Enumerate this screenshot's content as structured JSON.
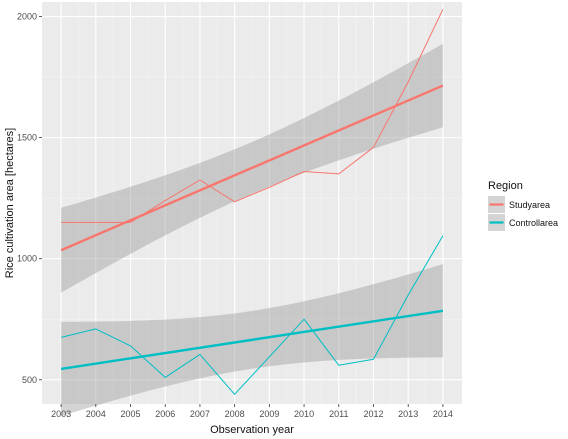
{
  "chart_data": {
    "type": "line",
    "title": "",
    "xlabel": "Observation year",
    "ylabel": "Rice cultivation area [hectares]",
    "x": [
      2003,
      2004,
      2005,
      2006,
      2007,
      2008,
      2009,
      2010,
      2011,
      2012,
      2013,
      2014
    ],
    "xlim": [
      2002.45,
      2014.55
    ],
    "ylim": [
      400,
      2060
    ],
    "y_ticks": [
      500,
      1000,
      1500,
      2000
    ],
    "grid": true,
    "legend": {
      "title": "Region",
      "position": "right"
    },
    "series": [
      {
        "name": "Studyarea",
        "color": "#F8766D",
        "values": [
          1150,
          1150,
          1150,
          1240,
          1325,
          1235,
          1295,
          1360,
          1350,
          1460,
          1730,
          2030
        ],
        "trend": {
          "start": 1035,
          "end": 1715
        },
        "ci_band": {
          "lower": [
            860,
            1545
          ],
          "upper": [
            1210,
            1890
          ]
        }
      },
      {
        "name": "Controllarea",
        "color": "#00BFC4",
        "values": [
          675,
          710,
          640,
          510,
          605,
          440,
          595,
          750,
          560,
          585,
          850,
          1095
        ],
        "trend": {
          "start": 545,
          "end": 785
        },
        "ci_band": {
          "lower": [
            350,
            595
          ],
          "upper": [
            740,
            980
          ]
        }
      }
    ]
  }
}
